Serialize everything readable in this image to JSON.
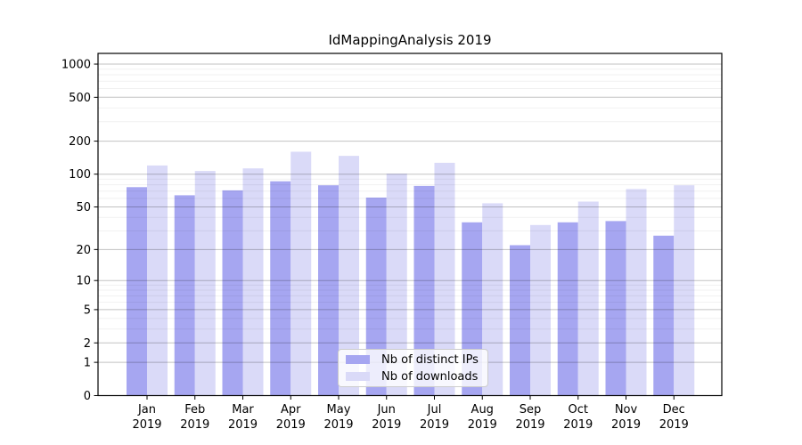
{
  "chart_data": {
    "type": "bar",
    "title": "IdMappingAnalysis 2019",
    "categories": [
      "Jan 2019",
      "Feb 2019",
      "Mar 2019",
      "Apr 2019",
      "May 2019",
      "Jun 2019",
      "Jul 2019",
      "Aug 2019",
      "Sep 2019",
      "Oct 2019",
      "Nov 2019",
      "Dec 2019"
    ],
    "series": [
      {
        "name": "Nb of distinct IPs",
        "color": "#a6a6f1",
        "values": [
          76,
          64,
          71,
          86,
          79,
          61,
          78,
          36,
          22,
          36,
          37,
          27
        ]
      },
      {
        "name": "Nb of downloads",
        "color": "#dadaf8",
        "values": [
          120,
          107,
          113,
          160,
          147,
          101,
          127,
          54,
          34,
          56,
          73,
          79
        ]
      }
    ],
    "yscale": "log1p",
    "yticks": [
      0,
      1,
      2,
      5,
      10,
      20,
      50,
      100,
      200,
      500,
      1000
    ],
    "minor_yticks": [
      3,
      4,
      6,
      7,
      8,
      9,
      30,
      40,
      60,
      70,
      80,
      90,
      300,
      400,
      600,
      700,
      800,
      900
    ],
    "ylim": [
      0,
      1250
    ],
    "grid": "both",
    "legend_position": "lower center",
    "colors": {
      "spine": "#000000",
      "major_grid": "rgba(0,0,0,0.24)",
      "minor_grid": "rgba(0,0,0,0.06)",
      "tick_text": "#000000"
    }
  }
}
